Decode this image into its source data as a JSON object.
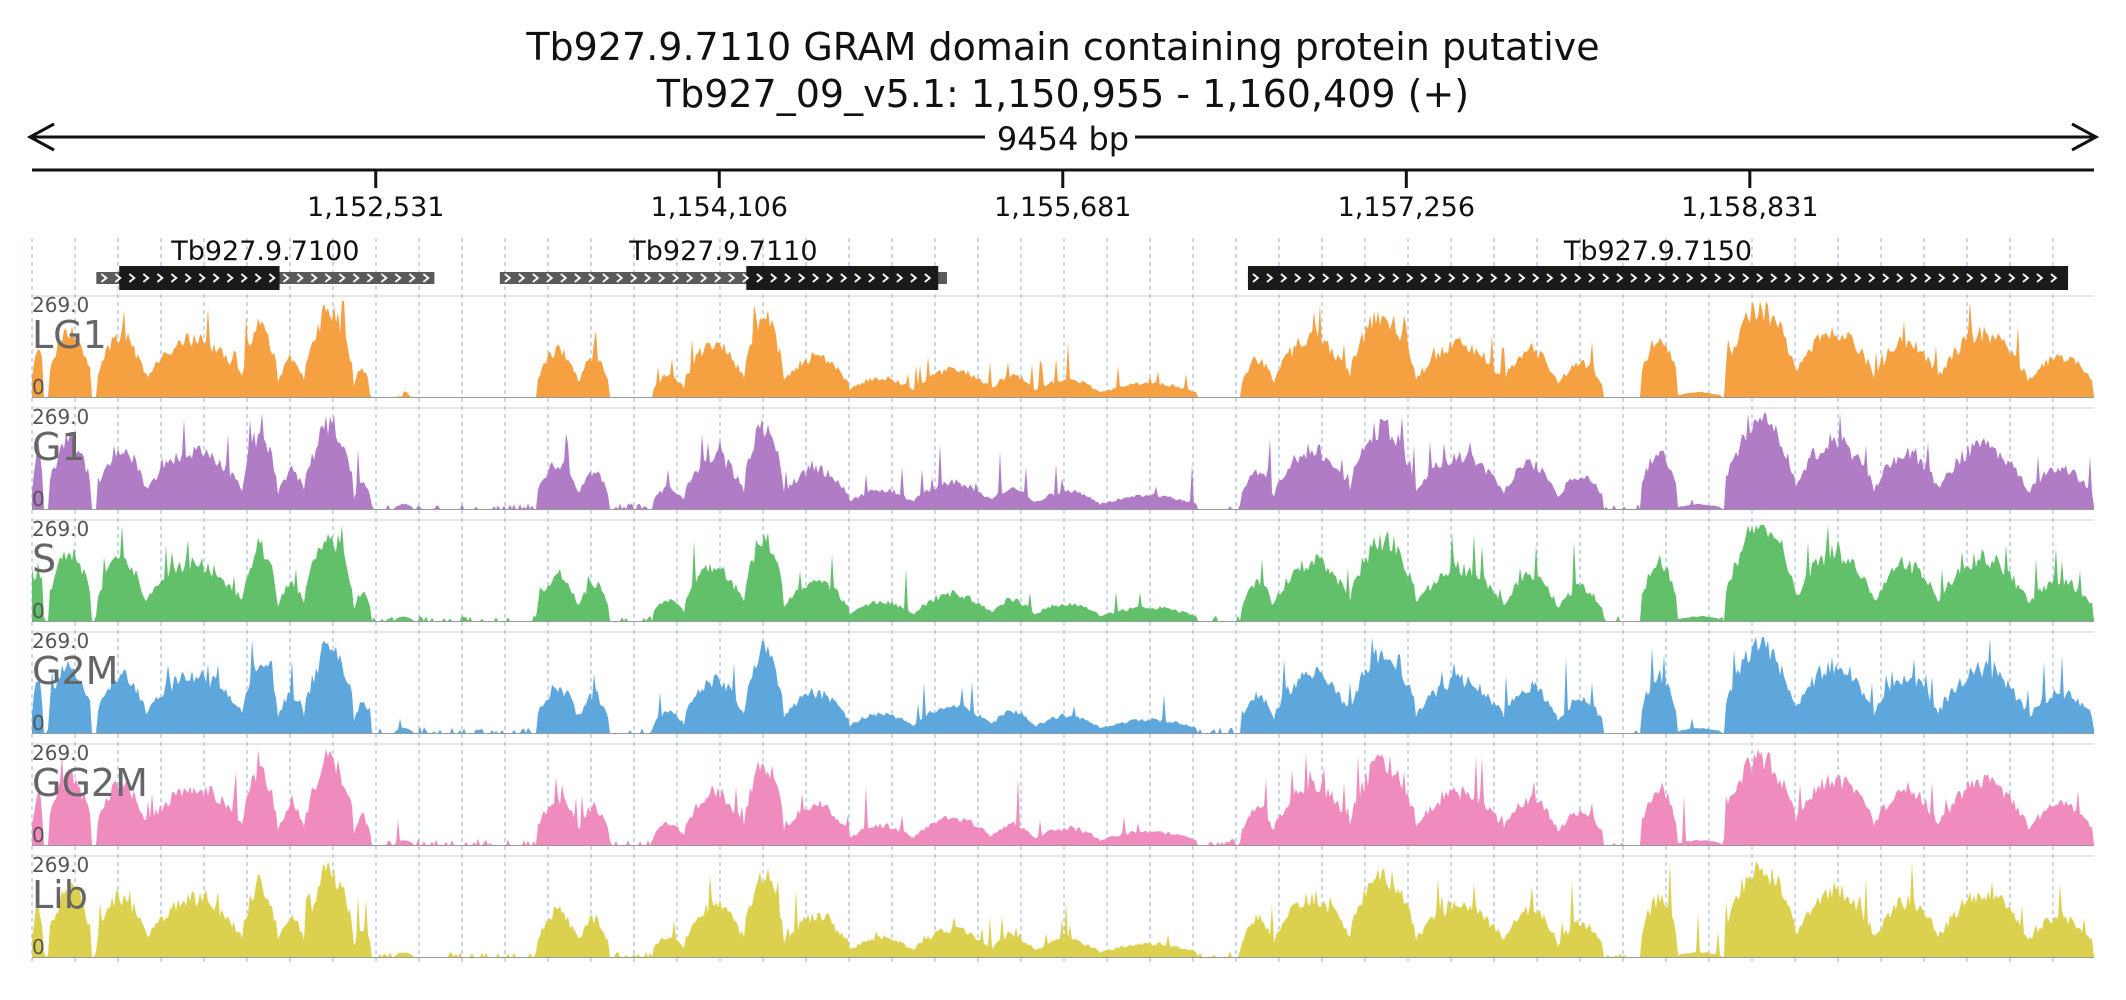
{
  "header": {
    "title": "Tb927.9.7110  GRAM domain containing protein  putative",
    "locus": "Tb927_09_v5.1: 1,150,955 - 1,160,409 (+)"
  },
  "ruler": {
    "span_label": "9454 bp",
    "start": 1150955,
    "end": 1160409,
    "ticks": [
      {
        "pos": 1152531,
        "label": "1,152,531"
      },
      {
        "pos": 1154106,
        "label": "1,154,106"
      },
      {
        "pos": 1155681,
        "label": "1,155,681"
      },
      {
        "pos": 1157256,
        "label": "1,157,256"
      },
      {
        "pos": 1158831,
        "label": "1,158,831"
      }
    ]
  },
  "genes": [
    {
      "name": "Tb927.9.7100",
      "utr": [
        1151250,
        1152800
      ],
      "cds": [
        1151355,
        1152090
      ]
    },
    {
      "name": "Tb927.9.7110",
      "utr": [
        1153100,
        1155150
      ],
      "cds": [
        1154230,
        1155110
      ]
    },
    {
      "name": "Tb927.9.7150",
      "utr": [
        1156530,
        1160290
      ],
      "cds": [
        1156530,
        1160290
      ]
    }
  ],
  "tracks": [
    {
      "label": "LG1",
      "max_label": "269.0",
      "min_label": "0",
      "color": "#f5a142"
    },
    {
      "label": "G1",
      "max_label": "269.0",
      "min_label": "0",
      "color": "#b07cc6"
    },
    {
      "label": "S",
      "max_label": "269.0",
      "min_label": "0",
      "color": "#62c06a"
    },
    {
      "label": "G2M",
      "max_label": "269.0",
      "min_label": "0",
      "color": "#5ea7dd"
    },
    {
      "label": "GG2M",
      "max_label": "269.0",
      "min_label": "0",
      "color": "#f08bbd"
    },
    {
      "label": "Lib",
      "max_label": "269.0",
      "min_label": "0",
      "color": "#dcd04f"
    }
  ],
  "colors": {
    "clip_marker": "#e23b3b",
    "gridline": "#8fb0e0",
    "gene_cds": "#1a1a1a",
    "gene_utr": "#5a5a5a"
  }
}
